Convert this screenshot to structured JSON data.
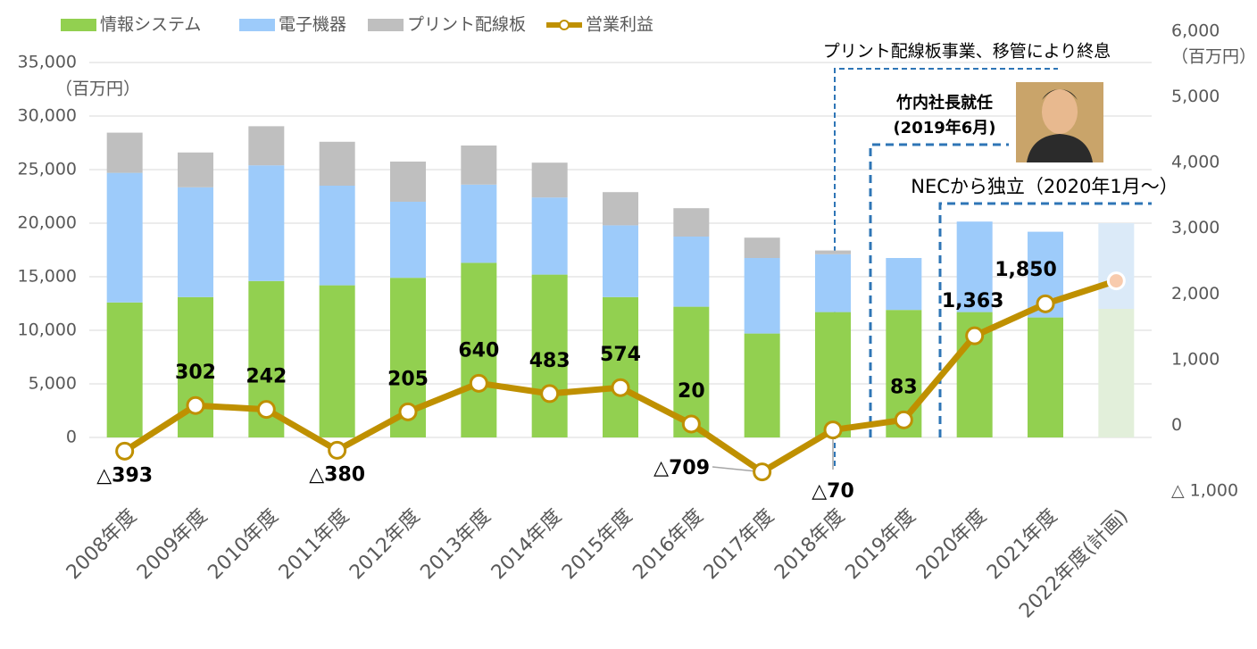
{
  "chart_data": {
    "type": "bar_line",
    "categories": [
      "2008年度",
      "2009年度",
      "2010年度",
      "2011年度",
      "2012年度",
      "2013年度",
      "2014年度",
      "2015年度",
      "2016年度",
      "2017年度",
      "2018年度",
      "2019年度",
      "2020年度",
      "2021年度",
      "2022年度(計画)"
    ],
    "series": [
      {
        "name": "情報システム",
        "color": "#92d050",
        "plan_color": "#e2efda",
        "values": [
          12600,
          13100,
          14600,
          14200,
          14900,
          16300,
          15200,
          13100,
          12200,
          9700,
          11700,
          11900,
          11700,
          11200,
          12000
        ]
      },
      {
        "name": "電子機器",
        "color": "#9dcbfa",
        "plan_color": "#dbeaf8",
        "values": [
          12100,
          10250,
          10800,
          9300,
          7100,
          7300,
          7200,
          6700,
          6550,
          7050,
          5400,
          4850,
          8450,
          8000,
          8000
        ]
      },
      {
        "name": "プリント配線板",
        "color": "#bfbfbf",
        "plan_color": "#e7e7e7",
        "values": [
          3750,
          3250,
          3650,
          4100,
          3750,
          3650,
          3250,
          3100,
          2650,
          1900,
          350,
          0,
          0,
          0,
          0
        ]
      },
      {
        "name": "営業利益",
        "color": "#bf9000",
        "axis": "y2",
        "values": [
          -393,
          302,
          242,
          -380,
          205,
          640,
          483,
          574,
          20,
          -709,
          -70,
          83,
          1363,
          1850,
          2200
        ],
        "value_labels": [
          "△393",
          "302",
          "242",
          "△380",
          "205",
          "640",
          "483",
          "574",
          "20",
          "△709",
          "△70",
          "83",
          "1,363",
          "1,850",
          null
        ]
      }
    ],
    "plan_index": 14,
    "ylim": [
      -5000,
      35000
    ],
    "yticks": [
      0,
      {
        "value": 5000,
        "label": "5,000"
      },
      {
        "value": 10000,
        "label": "10,000"
      },
      {
        "value": 15000,
        "label": "15,000"
      },
      {
        "value": 20000,
        "label": "20,000"
      },
      {
        "value": 25000,
        "label": "25,000"
      },
      {
        "value": 30000,
        "label": "30,000"
      },
      {
        "value": 35000,
        "label": "35,000"
      }
    ],
    "y_unit": "（百万円）",
    "y2lim": [
      -1000,
      6000
    ],
    "y2ticks": [
      {
        "value": -1000,
        "label": "△ 1,000"
      },
      0,
      {
        "value": 1000,
        "label": "1,000"
      },
      {
        "value": 2000,
        "label": "2,000"
      },
      {
        "value": 3000,
        "label": "3,000"
      },
      {
        "value": 4000,
        "label": "4,000"
      },
      {
        "value": 5000,
        "label": "5,000"
      },
      {
        "value": 6000,
        "label": "6,000"
      }
    ],
    "y2_unit": "（百万円）",
    "grid": true,
    "annotations": [
      "プリント配線板事業、移管により終息",
      "竹内社長就任",
      "(2019年6月)",
      "NECから独立（2020年1月～）"
    ]
  }
}
